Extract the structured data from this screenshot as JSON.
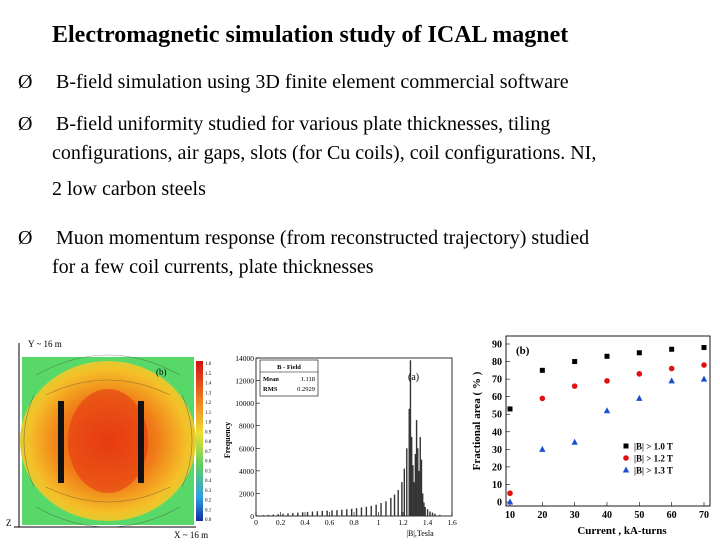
{
  "slide": {
    "title": "Electromagnetic simulation study of ICAL magnet",
    "bullets": [
      {
        "marker": "Ø",
        "lines": [
          "B-field simulation using 3D finite element commercial software"
        ]
      },
      {
        "marker": "Ø",
        "lines": [
          "B-field uniformity studied for various plate thicknesses, tiling",
          "configurations, air gaps, slots (for Cu coils), coil configurations. NI,",
          "2 low carbon steels"
        ]
      },
      {
        "marker": "Ø",
        "lines": [
          "Muon momentum response (from reconstructed trajectory) studied",
          "for a few coil currents, plate thicknesses"
        ]
      }
    ]
  },
  "field_map": {
    "panel_label": "(b)",
    "y_axis_label": "Y ~ 16 m",
    "x_axis_label": "X ~ 16 m",
    "z_label": "Z",
    "colorbar_ticks": [
      "1.6",
      "1.5",
      "1.4",
      "1.3",
      "1.2",
      "1.1",
      "1.0",
      "0.9",
      "0.8",
      "0.7",
      "0.6",
      "0.5",
      "0.4",
      "0.3",
      "0.2",
      "0.1",
      "0.0"
    ]
  },
  "chart_data": [
    {
      "type": "bar",
      "panel_label": "(a)",
      "xlabel": "|B|,Tesla",
      "ylabel": "Frequency",
      "ylim": [
        0,
        14000
      ],
      "yticks": [
        "0",
        "2000",
        "4000",
        "6000",
        "8000",
        "10000",
        "12000",
        "14000"
      ],
      "xticks": [
        "0",
        "0.2",
        "0.4",
        "0.6",
        "0.8",
        "1",
        "1.2",
        "1.4",
        "1.6"
      ],
      "stats": {
        "name": "B - Field",
        "mean_label": "Mean",
        "mean": "1.118",
        "rms_label": "RMS",
        "rms": "0.2929"
      },
      "x": [
        0.02,
        0.06,
        0.1,
        0.14,
        0.18,
        0.22,
        0.26,
        0.3,
        0.34,
        0.38,
        0.42,
        0.46,
        0.5,
        0.54,
        0.58,
        0.62,
        0.66,
        0.7,
        0.74,
        0.78,
        0.82,
        0.86,
        0.9,
        0.94,
        0.98,
        1.02,
        1.06,
        1.1,
        1.13,
        1.16,
        1.19,
        1.21,
        1.23,
        1.25,
        1.26,
        1.27,
        1.28,
        1.29,
        1.3,
        1.31,
        1.32,
        1.33,
        1.34,
        1.35,
        1.36,
        1.37,
        1.38,
        1.4,
        1.42,
        1.44,
        1.46,
        1.5,
        1.55
      ],
      "values": [
        50,
        80,
        100,
        130,
        160,
        200,
        230,
        260,
        300,
        330,
        360,
        400,
        420,
        450,
        480,
        500,
        520,
        560,
        600,
        640,
        700,
        760,
        820,
        900,
        1000,
        1150,
        1300,
        1600,
        1900,
        2300,
        3000,
        4200,
        6000,
        9500,
        13800,
        7000,
        4500,
        3000,
        5500,
        8500,
        6000,
        4000,
        7000,
        5000,
        2000,
        1200,
        800,
        600,
        400,
        300,
        200,
        100,
        50
      ]
    },
    {
      "type": "scatter",
      "xlabel": "Current , kA-turns",
      "ylabel": "Fractional area ( % )",
      "panel_label": "(b)",
      "xlim": [
        10,
        70
      ],
      "ylim": [
        0,
        90
      ],
      "xticks": [
        "10",
        "20",
        "30",
        "40",
        "50",
        "60",
        "70"
      ],
      "yticks": [
        "0",
        "10",
        "20",
        "30",
        "40",
        "50",
        "60",
        "70",
        "80",
        "90"
      ],
      "legend_position": "bottom-right",
      "x": [
        10,
        20,
        30,
        40,
        50,
        60,
        70
      ],
      "series": [
        {
          "name": "|B| > 1.0 T",
          "marker": "square",
          "color": "#000000",
          "values": [
            53,
            75,
            80,
            83,
            85,
            87,
            88
          ]
        },
        {
          "name": "|B| > 1.2 T",
          "marker": "circle",
          "color": "#e01010",
          "values": [
            5,
            59,
            66,
            69,
            73,
            76,
            78
          ]
        },
        {
          "name": "|B| > 1.3 T",
          "marker": "triangle",
          "color": "#1a4fd0",
          "values": [
            0,
            30,
            34,
            52,
            59,
            69,
            70
          ]
        }
      ]
    }
  ]
}
